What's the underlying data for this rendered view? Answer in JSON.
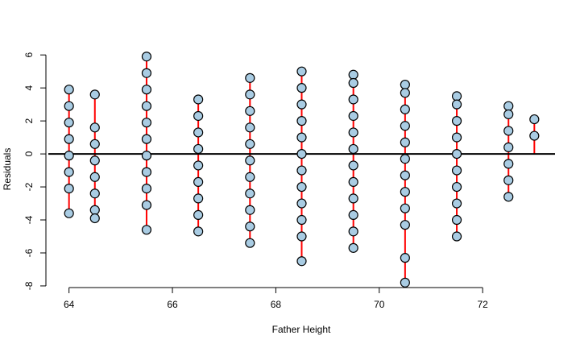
{
  "chart_data": {
    "type": "scatter",
    "title": "",
    "xlabel": "Father Height",
    "ylabel": "Residuals",
    "xlim": [
      63.6,
      73.4
    ],
    "ylim": [
      -8.1,
      6.4
    ],
    "x_ticks": [
      64,
      66,
      68,
      70,
      72
    ],
    "y_ticks": [
      -8,
      -6,
      -4,
      -2,
      0,
      2,
      4,
      6
    ],
    "x_tick_labels": [
      "64",
      "66",
      "68",
      "70",
      "72"
    ],
    "y_tick_labels": [
      "-8",
      "-6",
      "-4",
      "-2",
      "0",
      "2",
      "4",
      "6"
    ],
    "reference_line_y": 0,
    "grid": false,
    "legend": "none",
    "colors": {
      "point_fill": "#a9cce3",
      "point_stroke": "#000000",
      "residual_segment": "#ff0000",
      "reference_line": "#000000"
    },
    "points": [
      {
        "x": 64,
        "y": 3.9
      },
      {
        "x": 64,
        "y": 2.9
      },
      {
        "x": 64,
        "y": 1.9
      },
      {
        "x": 64,
        "y": 0.9
      },
      {
        "x": 64,
        "y": -0.1
      },
      {
        "x": 64,
        "y": -1.1
      },
      {
        "x": 64,
        "y": -2.1
      },
      {
        "x": 64,
        "y": -3.6
      },
      {
        "x": 64.5,
        "y": 3.6
      },
      {
        "x": 64.5,
        "y": 1.6
      },
      {
        "x": 64.5,
        "y": 0.6
      },
      {
        "x": 64.5,
        "y": -0.4
      },
      {
        "x": 64.5,
        "y": -1.4
      },
      {
        "x": 64.5,
        "y": -2.4
      },
      {
        "x": 64.5,
        "y": -3.4
      },
      {
        "x": 64.5,
        "y": -3.9
      },
      {
        "x": 65.5,
        "y": 5.9
      },
      {
        "x": 65.5,
        "y": 4.9
      },
      {
        "x": 65.5,
        "y": 3.9
      },
      {
        "x": 65.5,
        "y": 2.9
      },
      {
        "x": 65.5,
        "y": 1.9
      },
      {
        "x": 65.5,
        "y": 0.9
      },
      {
        "x": 65.5,
        "y": -0.1
      },
      {
        "x": 65.5,
        "y": -1.1
      },
      {
        "x": 65.5,
        "y": -2.1
      },
      {
        "x": 65.5,
        "y": -3.1
      },
      {
        "x": 65.5,
        "y": -4.6
      },
      {
        "x": 66.5,
        "y": 3.3
      },
      {
        "x": 66.5,
        "y": 2.3
      },
      {
        "x": 66.5,
        "y": 1.3
      },
      {
        "x": 66.5,
        "y": 0.3
      },
      {
        "x": 66.5,
        "y": -0.7
      },
      {
        "x": 66.5,
        "y": -1.7
      },
      {
        "x": 66.5,
        "y": -2.7
      },
      {
        "x": 66.5,
        "y": -3.7
      },
      {
        "x": 66.5,
        "y": -4.7
      },
      {
        "x": 67.5,
        "y": 4.6
      },
      {
        "x": 67.5,
        "y": 3.6
      },
      {
        "x": 67.5,
        "y": 2.6
      },
      {
        "x": 67.5,
        "y": 1.6
      },
      {
        "x": 67.5,
        "y": 0.6
      },
      {
        "x": 67.5,
        "y": -0.4
      },
      {
        "x": 67.5,
        "y": -1.4
      },
      {
        "x": 67.5,
        "y": -2.4
      },
      {
        "x": 67.5,
        "y": -3.4
      },
      {
        "x": 67.5,
        "y": -4.4
      },
      {
        "x": 67.5,
        "y": -5.4
      },
      {
        "x": 68.5,
        "y": 5.0
      },
      {
        "x": 68.5,
        "y": 4.0
      },
      {
        "x": 68.5,
        "y": 3.0
      },
      {
        "x": 68.5,
        "y": 2.0
      },
      {
        "x": 68.5,
        "y": 1.0
      },
      {
        "x": 68.5,
        "y": 0.0
      },
      {
        "x": 68.5,
        "y": -1.0
      },
      {
        "x": 68.5,
        "y": -2.0
      },
      {
        "x": 68.5,
        "y": -3.0
      },
      {
        "x": 68.5,
        "y": -4.0
      },
      {
        "x": 68.5,
        "y": -5.0
      },
      {
        "x": 68.5,
        "y": -6.5
      },
      {
        "x": 69.5,
        "y": 4.8
      },
      {
        "x": 69.5,
        "y": 4.3
      },
      {
        "x": 69.5,
        "y": 3.3
      },
      {
        "x": 69.5,
        "y": 2.3
      },
      {
        "x": 69.5,
        "y": 1.3
      },
      {
        "x": 69.5,
        "y": 0.3
      },
      {
        "x": 69.5,
        "y": -0.7
      },
      {
        "x": 69.5,
        "y": -1.7
      },
      {
        "x": 69.5,
        "y": -2.7
      },
      {
        "x": 69.5,
        "y": -3.7
      },
      {
        "x": 69.5,
        "y": -4.7
      },
      {
        "x": 69.5,
        "y": -5.7
      },
      {
        "x": 70.5,
        "y": 4.2
      },
      {
        "x": 70.5,
        "y": 3.7
      },
      {
        "x": 70.5,
        "y": 2.7
      },
      {
        "x": 70.5,
        "y": 1.7
      },
      {
        "x": 70.5,
        "y": 0.7
      },
      {
        "x": 70.5,
        "y": -0.3
      },
      {
        "x": 70.5,
        "y": -1.3
      },
      {
        "x": 70.5,
        "y": -2.3
      },
      {
        "x": 70.5,
        "y": -3.3
      },
      {
        "x": 70.5,
        "y": -4.3
      },
      {
        "x": 70.5,
        "y": -6.3
      },
      {
        "x": 70.5,
        "y": -7.8
      },
      {
        "x": 71.5,
        "y": 3.5
      },
      {
        "x": 71.5,
        "y": 3.0
      },
      {
        "x": 71.5,
        "y": 2.0
      },
      {
        "x": 71.5,
        "y": 1.0
      },
      {
        "x": 71.5,
        "y": 0.0
      },
      {
        "x": 71.5,
        "y": -1.0
      },
      {
        "x": 71.5,
        "y": -2.0
      },
      {
        "x": 71.5,
        "y": -3.0
      },
      {
        "x": 71.5,
        "y": -4.0
      },
      {
        "x": 71.5,
        "y": -5.0
      },
      {
        "x": 72.5,
        "y": 2.9
      },
      {
        "x": 72.5,
        "y": 2.4
      },
      {
        "x": 72.5,
        "y": 1.4
      },
      {
        "x": 72.5,
        "y": 0.4
      },
      {
        "x": 72.5,
        "y": -0.6
      },
      {
        "x": 72.5,
        "y": -1.6
      },
      {
        "x": 72.5,
        "y": -2.6
      },
      {
        "x": 73,
        "y": 2.1
      },
      {
        "x": 73,
        "y": 1.1
      }
    ]
  }
}
